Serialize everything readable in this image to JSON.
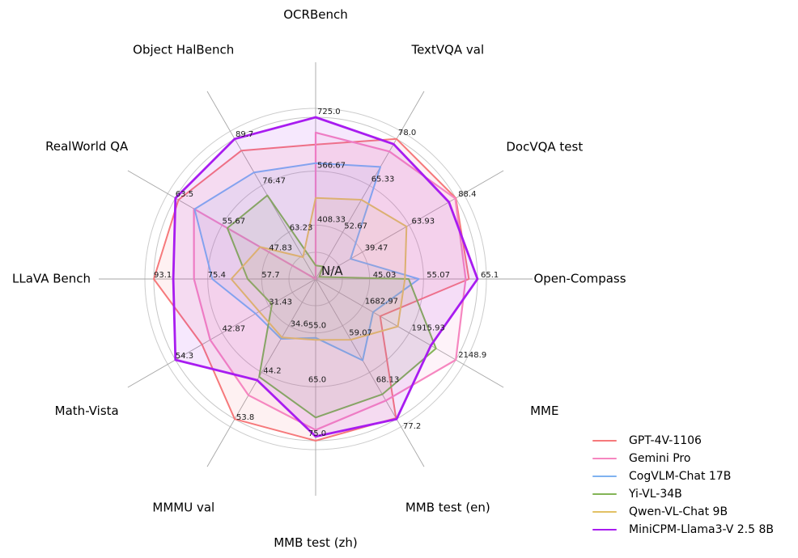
{
  "chart_data": {
    "type": "radar",
    "center_label": "N/A",
    "ring_fractions": [
      1.0,
      0.6667,
      0.3333
    ],
    "axes": [
      {
        "label": "OCRBench",
        "min": 250,
        "max": 725,
        "ticks": [
          "725.0",
          "566.67",
          "408.33"
        ]
      },
      {
        "label": "TextVQA val",
        "min": 40,
        "max": 78.0,
        "ticks": [
          "78.0",
          "65.33",
          "52.67"
        ]
      },
      {
        "label": "DocVQA test",
        "min": 15,
        "max": 88.4,
        "ticks": [
          "88.4",
          "63.93",
          "39.47"
        ]
      },
      {
        "label": "Open-Compass",
        "min": 35,
        "max": 65.1,
        "ticks": [
          "65.1",
          "55.07",
          "45.03"
        ]
      },
      {
        "label": "MME",
        "min": 1450,
        "max": 2148.9,
        "ticks": [
          "2148.9",
          "1915.93",
          "1682.97"
        ]
      },
      {
        "label": "MMB test (en)",
        "min": 50,
        "max": 77.2,
        "ticks": [
          "77.2",
          "68.13",
          "59.07"
        ]
      },
      {
        "label": "MMB test (zh)",
        "min": 45,
        "max": 75.0,
        "ticks": [
          "75.0",
          "65.0",
          "55.0"
        ]
      },
      {
        "label": "MMMU val",
        "min": 25,
        "max": 53.8,
        "ticks": [
          "53.8",
          "44.2",
          "34.6"
        ]
      },
      {
        "label": "Math-Vista",
        "min": 20,
        "max": 54.3,
        "ticks": [
          "54.3",
          "42.87",
          "31.43"
        ]
      },
      {
        "label": "LLaVA Bench",
        "min": 40,
        "max": 93.1,
        "ticks": [
          "93.1",
          "75.4",
          "57.7"
        ]
      },
      {
        "label": "RealWorld QA",
        "min": 40,
        "max": 63.5,
        "ticks": [
          "63.5",
          "55.67",
          "47.83"
        ]
      },
      {
        "label": "Object HalBench",
        "min": 50,
        "max": 89.7,
        "ticks": [
          "89.7",
          "76.47",
          "63.23"
        ]
      }
    ],
    "series": [
      {
        "name": "GPT-4V-1106",
        "color": "#f6797b",
        "values": [
          645,
          78.0,
          88.4,
          63.5,
          1771.5,
          77.0,
          75.0,
          53.8,
          47.8,
          93.1,
          63.0,
          86.4
        ]
      },
      {
        "name": "Gemini Pro",
        "color": "#f687c0",
        "values": [
          680,
          74.6,
          88.1,
          62.9,
          2148.9,
          73.6,
          73.0,
          48.9,
          45.8,
          79.9,
          60.4,
          null
        ]
      },
      {
        "name": "CogVLM-Chat 17B",
        "color": "#7fb2f0",
        "values": [
          590,
          70.4,
          33.3,
          54.2,
          1736.6,
          65.8,
          55.9,
          37.3,
          34.7,
          73.9,
          60.3,
          80.2
        ]
      },
      {
        "name": "Yi-VL-34B",
        "color": "#83b456",
        "values": [
          290,
          43.4,
          16.9,
          52.3,
          2050.2,
          72.4,
          70.7,
          45.1,
          30.7,
          62.3,
          54.8,
          73.7
        ]
      },
      {
        "name": "Qwen-VL-Chat 9B",
        "color": "#e2c164",
        "values": [
          488,
          61.5,
          62.6,
          51.6,
          1860.0,
          61.8,
          56.3,
          37.0,
          33.8,
          67.7,
          49.3,
          56.2
        ]
      },
      {
        "name": "MiniCPM-Llama3-V 2.5 8B",
        "color": "#a81cf0",
        "values": [
          725,
          76.6,
          84.8,
          65.1,
          2024.6,
          77.2,
          74.2,
          45.8,
          54.3,
          86.7,
          63.5,
          89.7
        ]
      }
    ],
    "legend": {
      "position": "lower right",
      "items": [
        "GPT-4V-1106",
        "Gemini Pro",
        "CogVLM-Chat 17B",
        "Yi-VL-34B",
        "Qwen-VL-Chat 9B",
        "MiniCPM-Llama3-V 2.5 8B"
      ]
    }
  }
}
